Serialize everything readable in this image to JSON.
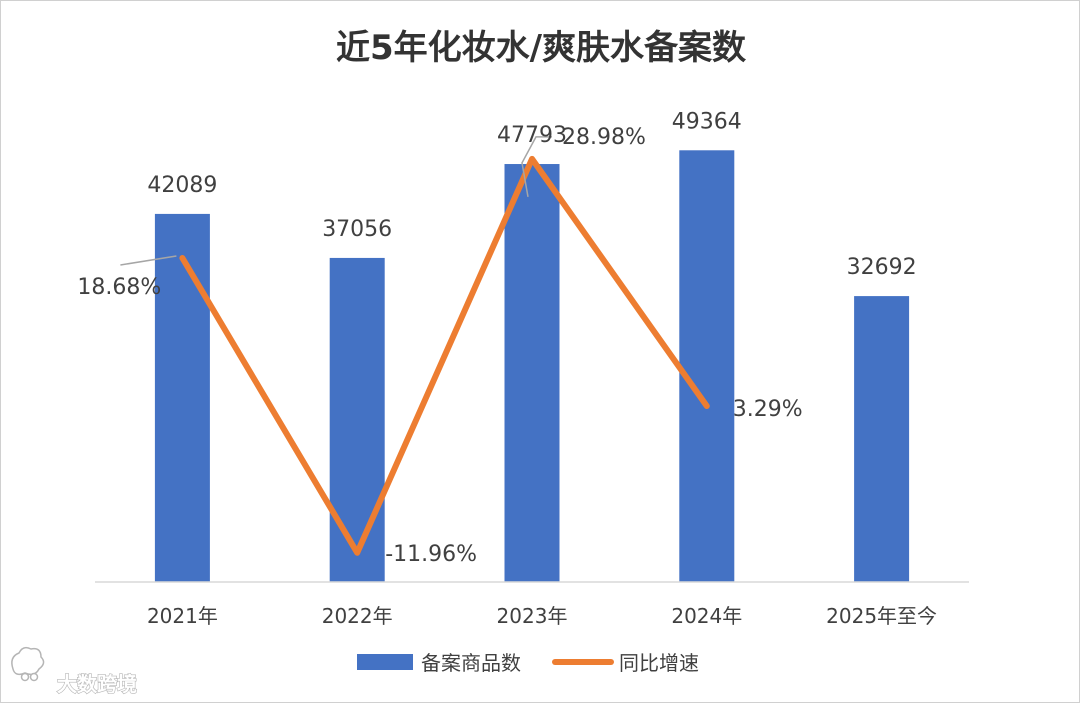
{
  "chart_data": {
    "type": "bar",
    "title": "近5年化妆水/爽肤水备案数",
    "categories": [
      "2021年",
      "2022年",
      "2023年",
      "2024年",
      "2025年至今"
    ],
    "series": [
      {
        "name": "备案商品数",
        "kind": "bar",
        "color": "#4472C4",
        "values": [
          42089,
          37056,
          47793,
          49364,
          32692
        ],
        "labels": [
          "42089",
          "37056",
          "47793",
          "49364",
          "32692"
        ]
      },
      {
        "name": "同比增速",
        "kind": "line",
        "color": "#ED7D31",
        "values": [
          18.68,
          -11.96,
          28.98,
          3.29,
          null
        ],
        "labels": [
          "18.68%",
          "-11.96%",
          "28.98%",
          "3.29%",
          ""
        ]
      }
    ],
    "ylim": [
      0,
      55000
    ],
    "y2lim": [
      -15,
      35
    ],
    "grid": false,
    "legend": "bottom"
  },
  "watermark": {
    "text": "大数跨境",
    "icon": "brand-logo-icon"
  }
}
